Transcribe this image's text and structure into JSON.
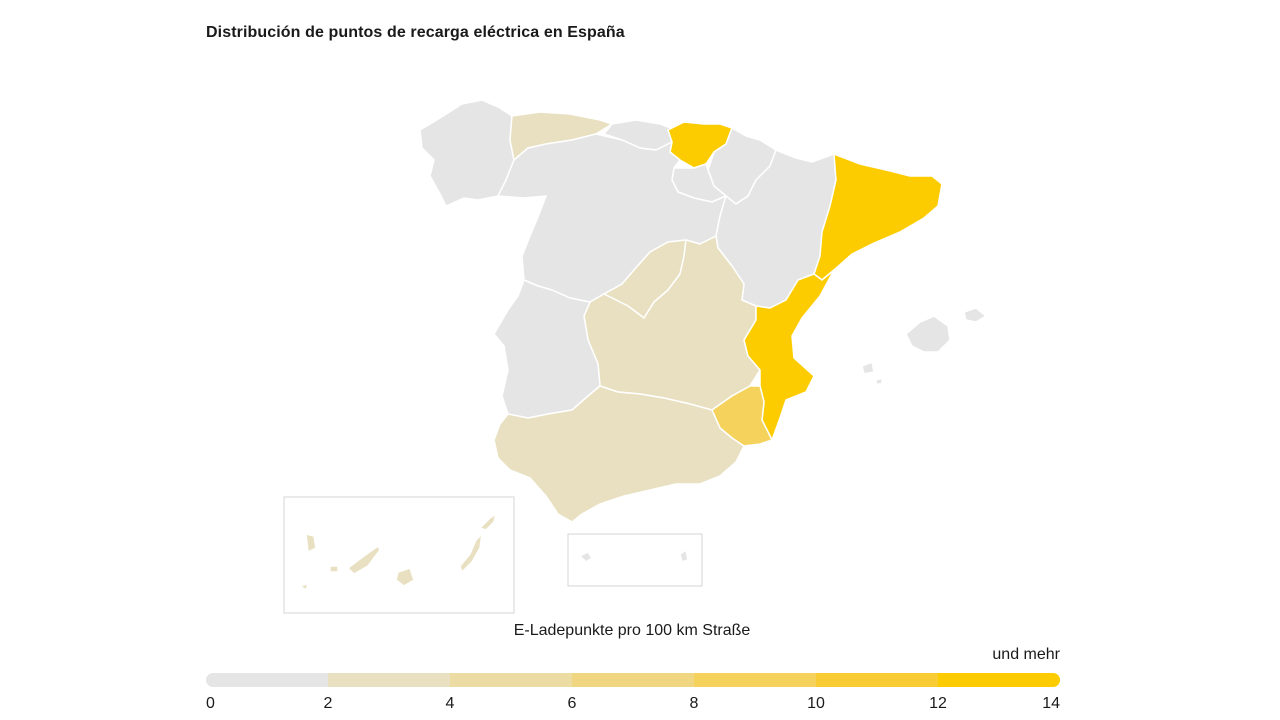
{
  "header": {
    "title": "Distribución de puntos de recarga eléctrica en España"
  },
  "legend": {
    "title": "E-Ladepunkte pro 100 km Straße",
    "more_label": "und mehr",
    "ticks": [
      "0",
      "2",
      "4",
      "6",
      "8",
      "10",
      "12",
      "14"
    ],
    "colors": [
      "#e5e5e5",
      "#e8e0c0",
      "#ecdca4",
      "#f0d680",
      "#f4d25c",
      "#f8cd34",
      "#fdcc00"
    ]
  },
  "map_data": {
    "regions": [
      {
        "name": "Galicia",
        "bin": 0,
        "color": "#e5e5e5"
      },
      {
        "name": "Asturias",
        "bin": 1,
        "color": "#e8e0c0"
      },
      {
        "name": "Cantabria",
        "bin": 0,
        "color": "#e5e5e5"
      },
      {
        "name": "País Vasco",
        "bin": 6,
        "color": "#fdcc00"
      },
      {
        "name": "Navarra",
        "bin": 0,
        "color": "#e5e5e5"
      },
      {
        "name": "La Rioja",
        "bin": 0,
        "color": "#e5e5e5"
      },
      {
        "name": "Castilla y León",
        "bin": 0,
        "color": "#e5e5e5"
      },
      {
        "name": "Aragón",
        "bin": 0,
        "color": "#e5e5e5"
      },
      {
        "name": "Cataluña",
        "bin": 6,
        "color": "#fdcc00"
      },
      {
        "name": "Comunidad de Madrid",
        "bin": 1,
        "color": "#e8e0c0"
      },
      {
        "name": "Castilla-La Mancha",
        "bin": 1,
        "color": "#e8e0c0"
      },
      {
        "name": "Extremadura",
        "bin": 0,
        "color": "#e5e5e5"
      },
      {
        "name": "Comunidad Valenciana",
        "bin": 6,
        "color": "#fdcc00"
      },
      {
        "name": "Región de Murcia",
        "bin": 4,
        "color": "#f4d25c"
      },
      {
        "name": "Andalucía",
        "bin": 1,
        "color": "#e8e0c0"
      },
      {
        "name": "Islas Baleares",
        "bin": 0,
        "color": "#e5e5e5"
      },
      {
        "name": "Canarias",
        "bin": 1,
        "color": "#e8e0c0"
      },
      {
        "name": "Ceuta y Melilla",
        "bin": 0,
        "color": "#e5e5e5"
      }
    ]
  }
}
